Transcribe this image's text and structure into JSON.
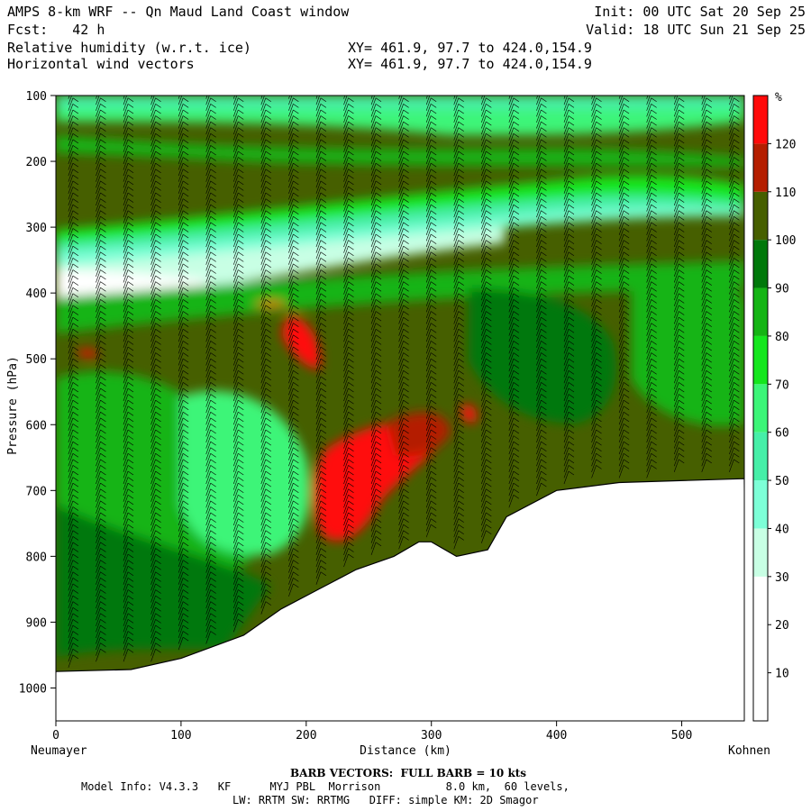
{
  "header": {
    "title": "AMPS 8-km WRF -- Qn Maud Land Coast window",
    "fcst": "Fcst:   42 h",
    "field1": "Relative humidity (w.r.t. ice)",
    "field2": "Horizontal wind vectors",
    "xy1": "XY= 461.9, 97.7 to 424.0,154.9",
    "xy2": "XY= 461.9, 97.7 to 424.0,154.9",
    "init": "Init: 00 UTC Sat 20 Sep 25",
    "valid": "Valid: 18 UTC Sun 21 Sep 25"
  },
  "footer": {
    "barb": "BARB VECTORS:  FULL BARB = 10 kts",
    "model": "Model Info: V4.3.3   KF      MYJ PBL  Morrison          8.0 km,  60 levels,",
    "physics": "LW: RRTM SW: RRTMG   DIFF: simple KM: 2D Smagor"
  },
  "chart_data": {
    "type": "heatmap",
    "title": "Relative humidity (w.r.t. ice) cross-section",
    "xlabel": "Distance (km)",
    "ylabel": "Pressure (hPa)",
    "xlim": [
      0,
      550
    ],
    "ylim": [
      1050,
      100
    ],
    "x_ticks": [
      0,
      100,
      200,
      300,
      400,
      500
    ],
    "y_ticks": [
      100,
      200,
      300,
      400,
      500,
      600,
      700,
      800,
      900,
      1000
    ],
    "x_start_label": "Neumayer",
    "x_end_label": "Kohnen",
    "colorbar": {
      "unit": "%",
      "levels": [
        10,
        20,
        30,
        40,
        50,
        60,
        70,
        80,
        90,
        100,
        110,
        120
      ],
      "colors": [
        "#ffffff",
        "#ffffff",
        "#ffffff",
        "#c8ffe4",
        "#7dffd7",
        "#46efa8",
        "#3cf578",
        "#14e61e",
        "#14b414",
        "#00780a",
        "#465f00",
        "#b41e00",
        "#ff0a0a"
      ]
    },
    "terrain_surface": [
      {
        "x": 0,
        "p": 975
      },
      {
        "x": 60,
        "p": 972
      },
      {
        "x": 100,
        "p": 955
      },
      {
        "x": 150,
        "p": 920
      },
      {
        "x": 180,
        "p": 880
      },
      {
        "x": 210,
        "p": 850
      },
      {
        "x": 240,
        "p": 820
      },
      {
        "x": 270,
        "p": 800
      },
      {
        "x": 290,
        "p": 778
      },
      {
        "x": 300,
        "p": 778
      },
      {
        "x": 320,
        "p": 800
      },
      {
        "x": 345,
        "p": 790
      },
      {
        "x": 360,
        "p": 740
      },
      {
        "x": 400,
        "p": 700
      },
      {
        "x": 450,
        "p": 688
      },
      {
        "x": 550,
        "p": 682
      }
    ]
  }
}
